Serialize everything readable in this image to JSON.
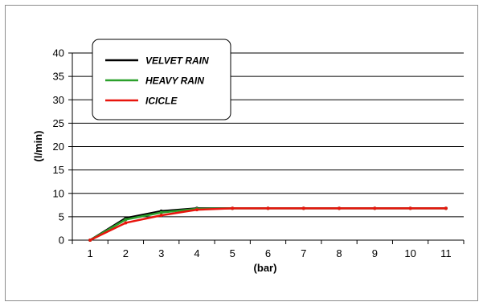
{
  "chart_data": {
    "type": "line",
    "title": "",
    "xlabel": "(bar)",
    "ylabel": "(l/min)",
    "categories": [
      "1",
      "2",
      "3",
      "4",
      "5",
      "6",
      "7",
      "8",
      "9",
      "10",
      "11"
    ],
    "ylim": [
      0,
      40
    ],
    "yticks": [
      0,
      5,
      10,
      15,
      20,
      25,
      30,
      35,
      40
    ],
    "grid": true,
    "legend_position": "top-left",
    "series": [
      {
        "name": "VELVET RAIN",
        "color": "#000000",
        "values": [
          0,
          4.7,
          6.2,
          6.8,
          6.8,
          6.8,
          6.8,
          6.8,
          6.8,
          6.8,
          6.8
        ]
      },
      {
        "name": "HEAVY RAIN",
        "color": "#2ca02c",
        "values": [
          0,
          4.4,
          5.9,
          6.7,
          6.8,
          6.8,
          6.8,
          6.8,
          6.8,
          6.8,
          6.8
        ]
      },
      {
        "name": "ICICLE",
        "color": "#e8150d",
        "values": [
          0,
          3.7,
          5.3,
          6.5,
          6.8,
          6.8,
          6.8,
          6.8,
          6.8,
          6.8,
          6.8
        ]
      }
    ]
  }
}
